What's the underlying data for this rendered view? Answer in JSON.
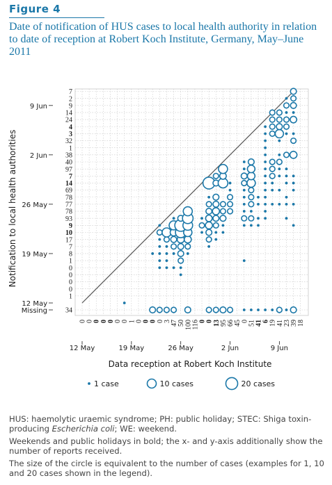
{
  "figure": {
    "label": "Figure 4",
    "title": "Date of notification of HUS cases to local health authority in relation to date of reception at Robert Koch Institute, Germany, May–June 2011"
  },
  "notes": {
    "n1_pre": "HUS: haemolytic uraemic syndrome; PH: public holiday; STEC: Shiga toxin-producing ",
    "n1_italic": "Escherichia coli",
    "n1_post": "; WE: weekend.",
    "n2": "Weekends and public holidays in bold; the x- and y-axis additionally show the number of reports received.",
    "n3": "The size of the circle is equivalent to the number of cases (examples for 1, 10 and 20 cases shown in the legend)."
  },
  "colors": {
    "primary": "#1a77a8",
    "grid": "#c8c8c8",
    "line": "#555555",
    "text": "#1a1a1a"
  },
  "chart_data": {
    "type": "scatter",
    "xlabel": "Data reception at Robert Koch Institute",
    "ylabel": "Notification to local health authorities",
    "grid": true,
    "legend_position": "bottom",
    "legend": [
      {
        "label": "1 case",
        "size": 1
      },
      {
        "label": "10 cases",
        "size": 10
      },
      {
        "label": "20 cases",
        "size": 20
      }
    ],
    "x_date_labels": [
      {
        "label": "12 May",
        "day": 12
      },
      {
        "label": "19 May",
        "day": 19
      },
      {
        "label": "26 May",
        "day": 26
      },
      {
        "label": "2 Jun",
        "day": 33
      },
      {
        "label": "9 Jun",
        "day": 40
      }
    ],
    "x_counts": [
      {
        "label": "0",
        "bold": false
      },
      {
        "label": "0",
        "bold": false
      },
      {
        "label": "0",
        "bold": true
      },
      {
        "label": "0",
        "bold": true
      },
      {
        "label": "0",
        "bold": true
      },
      {
        "label": "0",
        "bold": false
      },
      {
        "label": "0",
        "bold": false
      },
      {
        "label": "1",
        "bold": false
      },
      {
        "label": "0",
        "bold": false
      },
      {
        "label": "0",
        "bold": true
      },
      {
        "label": "0",
        "bold": true
      },
      {
        "label": "0",
        "bold": false
      },
      {
        "label": "3",
        "bold": false
      },
      {
        "label": "47",
        "bold": false
      },
      {
        "label": "50",
        "bold": false
      },
      {
        "label": "100",
        "bold": false
      },
      {
        "label": "116",
        "bold": false
      },
      {
        "label": "0",
        "bold": true
      },
      {
        "label": "0",
        "bold": true
      },
      {
        "label": "13",
        "bold": true
      },
      {
        "label": "95",
        "bold": false
      },
      {
        "label": "66",
        "bold": false
      },
      {
        "label": "45",
        "bold": false
      },
      {
        "label": "0",
        "bold": false
      },
      {
        "label": "51",
        "bold": false
      },
      {
        "label": "41",
        "bold": true
      },
      {
        "label": "6",
        "bold": true
      },
      {
        "label": "19",
        "bold": false
      },
      {
        "label": "41",
        "bold": false
      },
      {
        "label": "23",
        "bold": false
      },
      {
        "label": "39",
        "bold": false
      },
      {
        "label": "18",
        "bold": false
      }
    ],
    "y_date_labels": [
      {
        "label": "9 Jun",
        "day": 40
      },
      {
        "label": "2 Jun",
        "day": 33
      },
      {
        "label": "26 May",
        "day": 26
      },
      {
        "label": "19 May",
        "day": 19
      },
      {
        "label": "12 May",
        "day": 12
      },
      {
        "label": "Missing",
        "day": "missing"
      }
    ],
    "y_counts": [
      {
        "label": "7",
        "bold": false
      },
      {
        "label": "2",
        "bold": false
      },
      {
        "label": "9",
        "bold": false
      },
      {
        "label": "14",
        "bold": false
      },
      {
        "label": "24",
        "bold": false
      },
      {
        "label": "4",
        "bold": true
      },
      {
        "label": "3",
        "bold": true
      },
      {
        "label": "32",
        "bold": false
      },
      {
        "label": "1",
        "bold": false
      },
      {
        "label": "38",
        "bold": false
      },
      {
        "label": "40",
        "bold": false
      },
      {
        "label": "97",
        "bold": false
      },
      {
        "label": "7",
        "bold": true
      },
      {
        "label": "14",
        "bold": true
      },
      {
        "label": "69",
        "bold": false
      },
      {
        "label": "78",
        "bold": false
      },
      {
        "label": "77",
        "bold": false
      },
      {
        "label": "78",
        "bold": false
      },
      {
        "label": "93",
        "bold": false
      },
      {
        "label": "9",
        "bold": true
      },
      {
        "label": "10",
        "bold": true
      },
      {
        "label": "17",
        "bold": false
      },
      {
        "label": "7",
        "bold": false
      },
      {
        "label": "8",
        "bold": false
      },
      {
        "label": "1",
        "bold": false
      },
      {
        "label": "0",
        "bold": false
      },
      {
        "label": "0",
        "bold": false
      },
      {
        "label": "0",
        "bold": false
      },
      {
        "label": "0",
        "bold": false
      },
      {
        "label": "1",
        "bold": false
      },
      {
        "label": "34",
        "bold": false
      }
    ],
    "diagonal": {
      "from_day": 12,
      "to_day": 42
    },
    "points": [
      [
        18,
        12,
        1
      ],
      [
        22,
        19,
        1
      ],
      [
        23,
        19,
        1
      ],
      [
        23,
        18,
        1
      ],
      [
        23,
        17,
        1
      ],
      [
        23,
        20,
        1
      ],
      [
        23,
        21,
        1
      ],
      [
        23,
        22,
        2
      ],
      [
        23,
        23,
        1
      ],
      [
        24,
        17,
        1
      ],
      [
        24,
        18,
        1
      ],
      [
        24,
        19,
        1
      ],
      [
        24,
        20,
        1
      ],
      [
        24,
        21,
        2
      ],
      [
        24,
        22,
        10
      ],
      [
        25,
        17,
        1
      ],
      [
        25,
        19,
        1
      ],
      [
        25,
        20,
        2
      ],
      [
        25,
        21,
        3
      ],
      [
        25,
        22,
        5
      ],
      [
        25,
        23,
        10
      ],
      [
        25,
        24,
        1
      ],
      [
        26,
        16,
        1
      ],
      [
        26,
        17,
        1
      ],
      [
        26,
        18,
        2
      ],
      [
        26,
        19,
        3
      ],
      [
        26,
        20,
        3
      ],
      [
        26,
        21,
        5
      ],
      [
        26,
        22,
        15
      ],
      [
        26,
        23,
        20
      ],
      [
        26,
        24,
        3
      ],
      [
        27,
        19,
        1
      ],
      [
        27,
        20,
        2
      ],
      [
        27,
        21,
        5
      ],
      [
        27,
        22,
        8
      ],
      [
        27,
        23,
        12
      ],
      [
        27,
        24,
        15
      ],
      [
        27,
        25,
        10
      ],
      [
        29,
        22,
        1
      ],
      [
        29,
        23,
        2
      ],
      [
        29,
        24,
        1
      ],
      [
        30,
        20,
        1
      ],
      [
        30,
        21,
        2
      ],
      [
        30,
        22,
        3
      ],
      [
        30,
        23,
        5
      ],
      [
        30,
        24,
        4
      ],
      [
        30,
        25,
        3
      ],
      [
        30,
        26,
        2
      ],
      [
        30,
        27,
        1
      ],
      [
        30,
        29,
        20
      ],
      [
        31,
        21,
        1
      ],
      [
        31,
        22,
        1
      ],
      [
        31,
        23,
        2
      ],
      [
        31,
        24,
        3
      ],
      [
        31,
        25,
        5
      ],
      [
        31,
        26,
        3
      ],
      [
        31,
        27,
        3
      ],
      [
        31,
        29,
        3
      ],
      [
        31,
        30,
        2
      ],
      [
        32,
        22,
        1
      ],
      [
        32,
        23,
        1
      ],
      [
        32,
        24,
        3
      ],
      [
        32,
        25,
        2
      ],
      [
        32,
        26,
        2
      ],
      [
        32,
        29,
        12
      ],
      [
        32,
        30,
        4
      ],
      [
        32,
        31,
        10
      ],
      [
        33,
        25,
        2
      ],
      [
        33,
        26,
        2
      ],
      [
        33,
        27,
        2
      ],
      [
        33,
        28,
        1
      ],
      [
        33,
        29,
        1
      ],
      [
        35,
        18,
        1
      ],
      [
        35,
        23,
        1
      ],
      [
        35,
        24,
        2
      ],
      [
        35,
        25,
        1
      ],
      [
        35,
        26,
        1
      ],
      [
        35,
        27,
        1
      ],
      [
        35,
        28,
        1
      ],
      [
        35,
        29,
        2
      ],
      [
        35,
        30,
        3
      ],
      [
        35,
        31,
        1
      ],
      [
        35,
        32,
        1
      ],
      [
        36,
        23,
        1
      ],
      [
        36,
        24,
        2
      ],
      [
        36,
        25,
        1
      ],
      [
        36,
        26,
        2
      ],
      [
        36,
        27,
        2
      ],
      [
        36,
        28,
        2
      ],
      [
        36,
        29,
        8
      ],
      [
        36,
        30,
        6
      ],
      [
        36,
        31,
        6
      ],
      [
        36,
        32,
        3
      ],
      [
        37,
        23,
        1
      ],
      [
        37,
        24,
        1
      ],
      [
        37,
        26,
        1
      ],
      [
        37,
        27,
        1
      ],
      [
        38,
        24,
        1
      ],
      [
        38,
        25,
        1
      ],
      [
        38,
        26,
        1
      ],
      [
        38,
        27,
        1
      ],
      [
        38,
        28,
        1
      ],
      [
        38,
        29,
        1
      ],
      [
        38,
        30,
        1
      ],
      [
        38,
        31,
        1
      ],
      [
        38,
        32,
        1
      ],
      [
        38,
        33,
        1
      ],
      [
        38,
        34,
        1
      ],
      [
        38,
        35,
        1
      ],
      [
        38,
        36,
        1
      ],
      [
        38,
        37,
        1
      ],
      [
        39,
        26,
        1
      ],
      [
        39,
        28,
        1
      ],
      [
        39,
        29,
        1
      ],
      [
        39,
        30,
        2
      ],
      [
        39,
        31,
        2
      ],
      [
        39,
        32,
        2
      ],
      [
        39,
        36,
        2
      ],
      [
        39,
        37,
        2
      ],
      [
        39,
        38,
        2
      ],
      [
        39,
        39,
        2
      ],
      [
        40,
        26,
        1
      ],
      [
        40,
        28,
        1
      ],
      [
        40,
        30,
        1
      ],
      [
        40,
        31,
        1
      ],
      [
        40,
        32,
        2
      ],
      [
        40,
        33,
        1
      ],
      [
        40,
        35,
        1
      ],
      [
        40,
        36,
        8
      ],
      [
        40,
        37,
        3
      ],
      [
        40,
        38,
        2
      ],
      [
        40,
        39,
        2
      ],
      [
        41,
        24,
        1
      ],
      [
        41,
        26,
        1
      ],
      [
        41,
        27,
        1
      ],
      [
        41,
        29,
        1
      ],
      [
        41,
        30,
        1
      ],
      [
        41,
        31,
        1
      ],
      [
        41,
        33,
        2
      ],
      [
        41,
        36,
        1
      ],
      [
        41,
        37,
        2
      ],
      [
        41,
        38,
        2
      ],
      [
        41,
        39,
        1
      ],
      [
        41,
        40,
        2
      ],
      [
        41,
        41,
        1
      ],
      [
        42,
        23,
        1
      ],
      [
        42,
        26,
        1
      ],
      [
        42,
        28,
        1
      ],
      [
        42,
        29,
        1
      ],
      [
        42,
        30,
        1
      ],
      [
        42,
        33,
        5
      ],
      [
        42,
        35,
        2
      ],
      [
        42,
        36,
        1
      ],
      [
        42,
        38,
        4
      ],
      [
        42,
        39,
        1
      ],
      [
        42,
        40,
        3
      ],
      [
        42,
        41,
        2
      ],
      [
        42,
        42,
        3
      ]
    ],
    "missing_points": [
      [
        22,
        3
      ],
      [
        23,
        2
      ],
      [
        24,
        2
      ],
      [
        25,
        2
      ],
      [
        27,
        3
      ],
      [
        30,
        2
      ],
      [
        31,
        2
      ],
      [
        32,
        3
      ],
      [
        33,
        2
      ],
      [
        35,
        1
      ],
      [
        36,
        1
      ],
      [
        37,
        1
      ],
      [
        38,
        1
      ],
      [
        39,
        1
      ],
      [
        40,
        2
      ],
      [
        41,
        1
      ],
      [
        42,
        3
      ]
    ]
  }
}
